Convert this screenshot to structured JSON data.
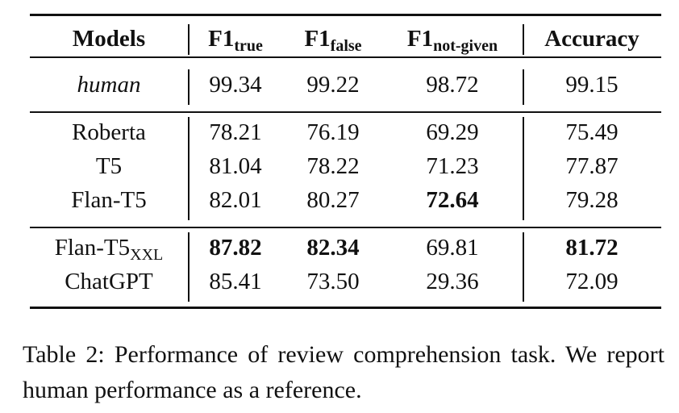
{
  "table": {
    "columns": [
      {
        "text": "Models"
      },
      {
        "text": "F1",
        "sub": "true"
      },
      {
        "text": "F1",
        "sub": "false"
      },
      {
        "text": "F1",
        "sub": "not-given"
      },
      {
        "text": "Accuracy"
      }
    ],
    "groups": [
      {
        "rows": [
          {
            "model": {
              "text": "human",
              "italic": true
            },
            "cells": [
              {
                "text": "99.34"
              },
              {
                "text": "99.22"
              },
              {
                "text": "98.72"
              },
              {
                "text": "99.15"
              }
            ]
          }
        ]
      },
      {
        "rows": [
          {
            "model": {
              "text": "Roberta"
            },
            "cells": [
              {
                "text": "78.21"
              },
              {
                "text": "76.19"
              },
              {
                "text": "69.29"
              },
              {
                "text": "75.49"
              }
            ]
          },
          {
            "model": {
              "text": "T5"
            },
            "cells": [
              {
                "text": "81.04"
              },
              {
                "text": "78.22"
              },
              {
                "text": "71.23"
              },
              {
                "text": "77.87"
              }
            ]
          },
          {
            "model": {
              "text": "Flan-T5"
            },
            "cells": [
              {
                "text": "82.01"
              },
              {
                "text": "80.27"
              },
              {
                "text": "72.64",
                "bold": true
              },
              {
                "text": "79.28"
              }
            ]
          }
        ]
      },
      {
        "rows": [
          {
            "model": {
              "text": "Flan-T5",
              "sub": "XXL"
            },
            "cells": [
              {
                "text": "87.82",
                "bold": true
              },
              {
                "text": "82.34",
                "bold": true
              },
              {
                "text": "69.81"
              },
              {
                "text": "81.72",
                "bold": true
              }
            ]
          },
          {
            "model": {
              "text": "ChatGPT"
            },
            "cells": [
              {
                "text": "85.41"
              },
              {
                "text": "73.50"
              },
              {
                "text": "29.36"
              },
              {
                "text": "72.09"
              }
            ]
          }
        ]
      }
    ]
  },
  "caption": "Table 2: Performance of review comprehension task. We report human performance as a reference."
}
